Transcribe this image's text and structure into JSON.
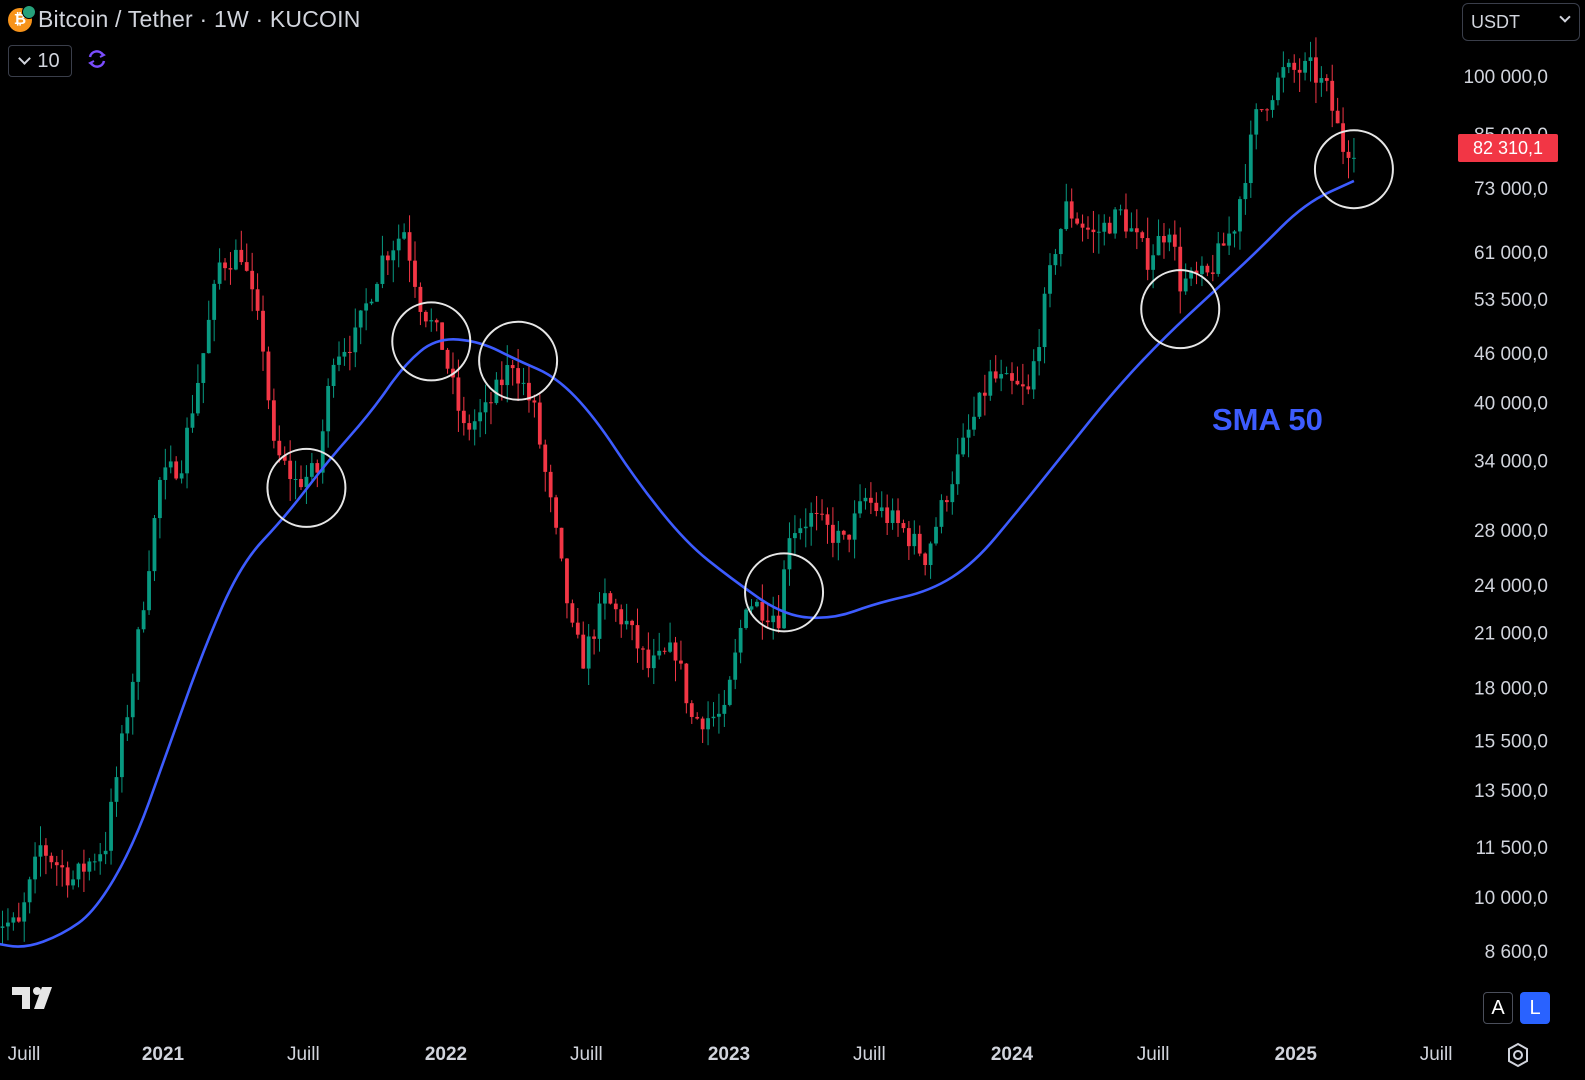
{
  "header": {
    "title": "Bitcoin / Tether · 1W · KUCOIN",
    "indicator_count": "10",
    "currency": "USDT"
  },
  "current_price": "82 310,1",
  "sma_label": "SMA 50",
  "buttons": {
    "auto": "A",
    "log": "L"
  },
  "colors": {
    "up": "#089981",
    "down": "#f23645",
    "sma": "#3d5cff",
    "background": "#000000",
    "circle": "#e6e6e6"
  },
  "chart_data": {
    "type": "candlestick",
    "title": "Bitcoin / Tether · 1W · KUCOIN",
    "y_scale": "log",
    "y_ticks": [
      {
        "value": 100000,
        "label": "100 000,0"
      },
      {
        "value": 85000,
        "label": "85 000,0"
      },
      {
        "value": 73000,
        "label": "73 000,0"
      },
      {
        "value": 61000,
        "label": "61 000,0"
      },
      {
        "value": 53500,
        "label": "53 500,0"
      },
      {
        "value": 46000,
        "label": "46 000,0"
      },
      {
        "value": 40000,
        "label": "40 000,0"
      },
      {
        "value": 34000,
        "label": "34 000,0"
      },
      {
        "value": 28000,
        "label": "28 000,0"
      },
      {
        "value": 24000,
        "label": "24 000,0"
      },
      {
        "value": 21000,
        "label": "21 000,0"
      },
      {
        "value": 18000,
        "label": "18 000,0"
      },
      {
        "value": 15500,
        "label": "15 500,0"
      },
      {
        "value": 13500,
        "label": "13 500,0"
      },
      {
        "value": 11500,
        "label": "11 500,0"
      },
      {
        "value": 10000,
        "label": "10 000,0"
      },
      {
        "value": 8600,
        "label": "8 600,0"
      }
    ],
    "x_ticks": [
      {
        "date": "2020-07-01",
        "label": "Juill",
        "bold": false
      },
      {
        "date": "2021-01-01",
        "label": "2021",
        "bold": true
      },
      {
        "date": "2021-07-01",
        "label": "Juill",
        "bold": false
      },
      {
        "date": "2022-01-01",
        "label": "2022",
        "bold": true
      },
      {
        "date": "2022-07-01",
        "label": "Juill",
        "bold": false
      },
      {
        "date": "2023-01-01",
        "label": "2023",
        "bold": true
      },
      {
        "date": "2023-07-01",
        "label": "Juill",
        "bold": false
      },
      {
        "date": "2024-01-01",
        "label": "2024",
        "bold": true
      },
      {
        "date": "2024-07-01",
        "label": "Juill",
        "bold": false
      },
      {
        "date": "2025-01-01",
        "label": "2025",
        "bold": true
      },
      {
        "date": "2025-07-01",
        "label": "Juill",
        "bold": false
      }
    ],
    "close_anchors": [
      [
        "2020-05-25",
        9400
      ],
      [
        "2020-06-29",
        9200
      ],
      [
        "2020-07-27",
        11500
      ],
      [
        "2020-09-07",
        10500
      ],
      [
        "2020-10-19",
        11600
      ],
      [
        "2020-11-23",
        18500
      ],
      [
        "2020-12-28",
        32000
      ],
      [
        "2021-01-25",
        34000
      ],
      [
        "2021-02-22",
        46000
      ],
      [
        "2021-03-15",
        59000
      ],
      [
        "2021-04-12",
        61000
      ],
      [
        "2021-05-10",
        47000
      ],
      [
        "2021-05-24",
        35000
      ],
      [
        "2021-06-21",
        32000
      ],
      [
        "2021-07-19",
        33000
      ],
      [
        "2021-08-09",
        46000
      ],
      [
        "2021-09-06",
        48000
      ],
      [
        "2021-10-11",
        60000
      ],
      [
        "2021-11-08",
        65000
      ],
      [
        "2021-11-29",
        53000
      ],
      [
        "2021-12-27",
        47000
      ],
      [
        "2022-01-24",
        37000
      ],
      [
        "2022-02-21",
        39000
      ],
      [
        "2022-03-28",
        45000
      ],
      [
        "2022-04-25",
        39000
      ],
      [
        "2022-05-16",
        30000
      ],
      [
        "2022-06-13",
        21000
      ],
      [
        "2022-06-27",
        19500
      ],
      [
        "2022-07-25",
        23000
      ],
      [
        "2022-08-22",
        21500
      ],
      [
        "2022-09-19",
        19000
      ],
      [
        "2022-10-24",
        20000
      ],
      [
        "2022-11-14",
        16500
      ],
      [
        "2022-12-26",
        16600
      ],
      [
        "2023-01-23",
        23000
      ],
      [
        "2023-03-06",
        22000
      ],
      [
        "2023-03-20",
        28000
      ],
      [
        "2023-04-17",
        29000
      ],
      [
        "2023-05-29",
        27000
      ],
      [
        "2023-06-26",
        30500
      ],
      [
        "2023-08-14",
        28000
      ],
      [
        "2023-09-11",
        26000
      ],
      [
        "2023-10-23",
        34000
      ],
      [
        "2023-12-04",
        43000
      ],
      [
        "2024-01-22",
        41000
      ],
      [
        "2024-02-26",
        62000
      ],
      [
        "2024-03-11",
        69000
      ],
      [
        "2024-04-15",
        64000
      ],
      [
        "2024-05-20",
        68000
      ],
      [
        "2024-06-24",
        60000
      ],
      [
        "2024-07-22",
        66000
      ],
      [
        "2024-08-05",
        56000
      ],
      [
        "2024-09-09",
        57000
      ],
      [
        "2024-10-14",
        66000
      ],
      [
        "2024-11-11",
        89000
      ],
      [
        "2024-12-16",
        101000
      ],
      [
        "2025-01-20",
        102000
      ],
      [
        "2025-02-10",
        96000
      ],
      [
        "2025-03-03",
        82000
      ],
      [
        "2025-03-17",
        82310
      ]
    ],
    "sma_50": [
      [
        "2020-05-25",
        8800
      ],
      [
        "2020-07-06",
        8650
      ],
      [
        "2020-08-24",
        9000
      ],
      [
        "2020-10-05",
        9600
      ],
      [
        "2020-11-23",
        11500
      ],
      [
        "2021-01-04",
        14800
      ],
      [
        "2021-02-22",
        20000
      ],
      [
        "2021-04-12",
        25500
      ],
      [
        "2021-06-07",
        29000
      ],
      [
        "2021-08-02",
        34000
      ],
      [
        "2021-09-27",
        39000
      ],
      [
        "2021-11-08",
        44500
      ],
      [
        "2021-12-20",
        48000
      ],
      [
        "2022-02-14",
        47500
      ],
      [
        "2022-04-04",
        45000
      ],
      [
        "2022-05-23",
        43000
      ],
      [
        "2022-07-11",
        38500
      ],
      [
        "2022-09-05",
        32000
      ],
      [
        "2022-11-07",
        27000
      ],
      [
        "2023-01-02",
        24500
      ],
      [
        "2023-03-13",
        22000
      ],
      [
        "2023-05-15",
        21800
      ],
      [
        "2023-07-10",
        22800
      ],
      [
        "2023-09-18",
        23600
      ],
      [
        "2023-11-13",
        25500
      ],
      [
        "2024-01-08",
        29500
      ],
      [
        "2024-03-11",
        35000
      ],
      [
        "2024-05-13",
        41500
      ],
      [
        "2024-07-15",
        48000
      ],
      [
        "2024-09-16",
        54500
      ],
      [
        "2024-11-11",
        61000
      ],
      [
        "2025-01-13",
        70000
      ],
      [
        "2025-03-17",
        74500
      ]
    ],
    "annotations": {
      "circles": [
        {
          "date": "2021-07-05",
          "price": 31500
        },
        {
          "date": "2021-12-13",
          "price": 47500
        },
        {
          "date": "2022-04-04",
          "price": 45000
        },
        {
          "date": "2023-03-13",
          "price": 23500
        },
        {
          "date": "2024-08-05",
          "price": 52000
        },
        {
          "date": "2025-03-17",
          "price": 77000
        }
      ]
    }
  }
}
